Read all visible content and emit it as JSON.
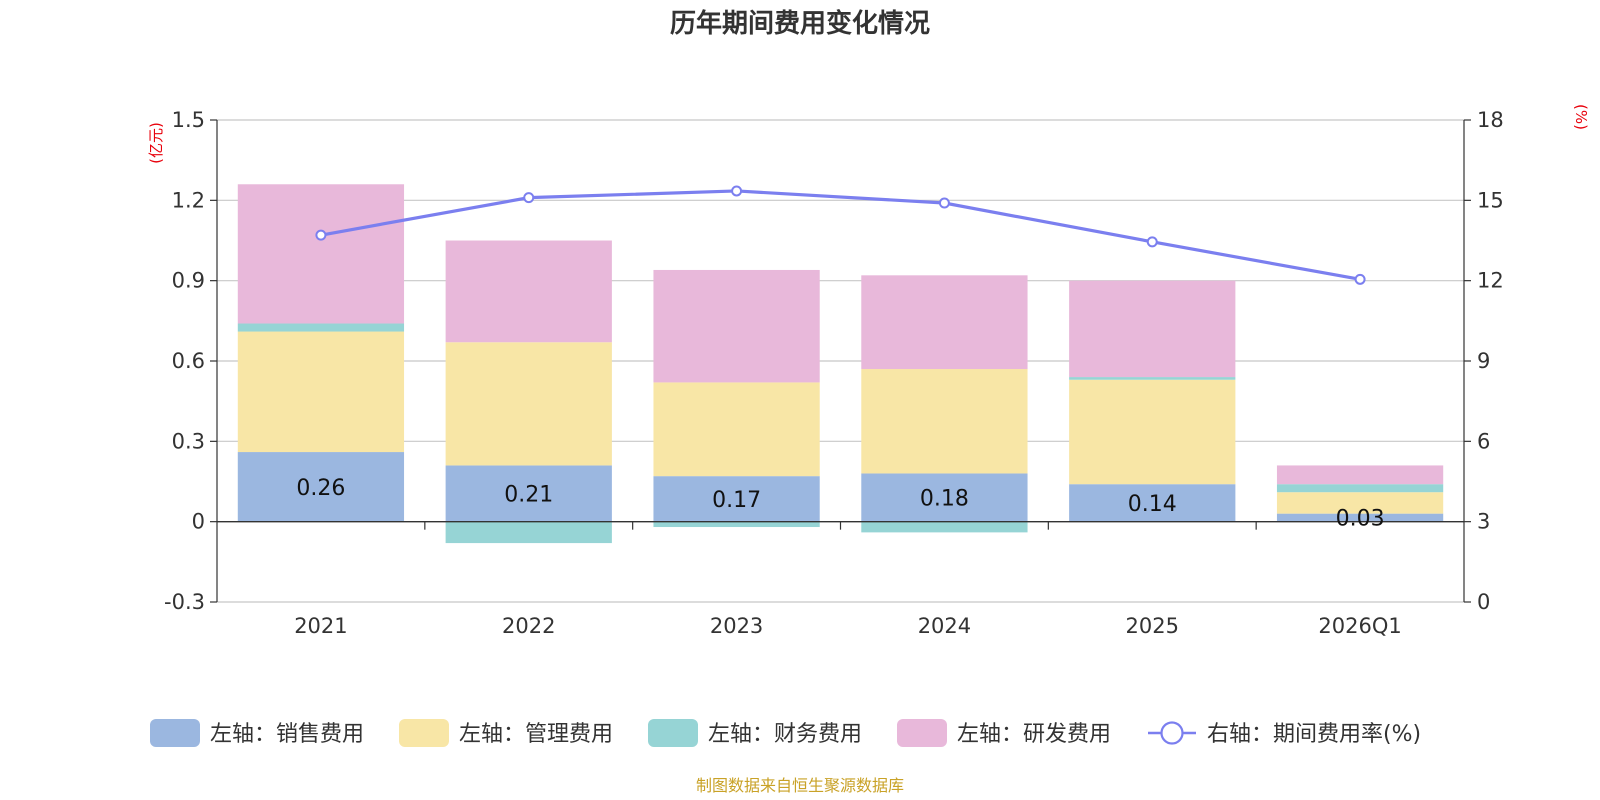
{
  "chart_data": {
    "type": "bar",
    "stacked": true,
    "title": "历年期间费用变化情况",
    "categories": [
      "2021",
      "2022",
      "2023",
      "2024",
      "2025",
      "2026Q1"
    ],
    "left_axis": {
      "unit": "(亿元)",
      "ylim": [
        -0.3,
        1.5
      ],
      "ticks": [
        -0.3,
        0,
        0.3,
        0.6,
        0.9,
        1.2,
        1.5
      ],
      "tick_labels": [
        "-0.3",
        "0",
        "0.3",
        "0.6",
        "0.9",
        "1.2",
        "1.5"
      ]
    },
    "right_axis": {
      "unit": "(%)",
      "ylim": [
        0,
        18
      ],
      "ticks": [
        0,
        3,
        6,
        9,
        12,
        15,
        18
      ],
      "tick_labels": [
        "0",
        "3",
        "6",
        "9",
        "12",
        "15",
        "18"
      ]
    },
    "series": [
      {
        "name": "左轴：销售费用",
        "axis": "left",
        "color": "#9bb7e0",
        "values": [
          0.26,
          0.21,
          0.17,
          0.18,
          0.14,
          0.03
        ],
        "data_labels": [
          "0.26",
          "0.21",
          "0.17",
          "0.18",
          "0.14",
          "0.03"
        ]
      },
      {
        "name": "左轴：管理费用",
        "axis": "left",
        "color": "#f8e6a6",
        "values": [
          0.45,
          0.46,
          0.35,
          0.39,
          0.39,
          0.08
        ]
      },
      {
        "name": "左轴：财务费用",
        "axis": "left",
        "color": "#96d4d5",
        "values": [
          0.03,
          -0.08,
          -0.02,
          -0.04,
          0.01,
          0.03
        ]
      },
      {
        "name": "左轴：研发费用",
        "axis": "left",
        "color": "#e8b8da",
        "values": [
          0.52,
          0.38,
          0.42,
          0.35,
          0.36,
          0.07
        ]
      },
      {
        "name": "右轴：期间费用率(%)",
        "axis": "right",
        "type": "line",
        "color": "#7b7fef",
        "values": [
          13.7,
          15.1,
          15.35,
          14.9,
          13.45,
          12.05
        ]
      }
    ],
    "legend_position": "bottom",
    "grid": true,
    "source": "制图数据来自恒生聚源数据库"
  }
}
